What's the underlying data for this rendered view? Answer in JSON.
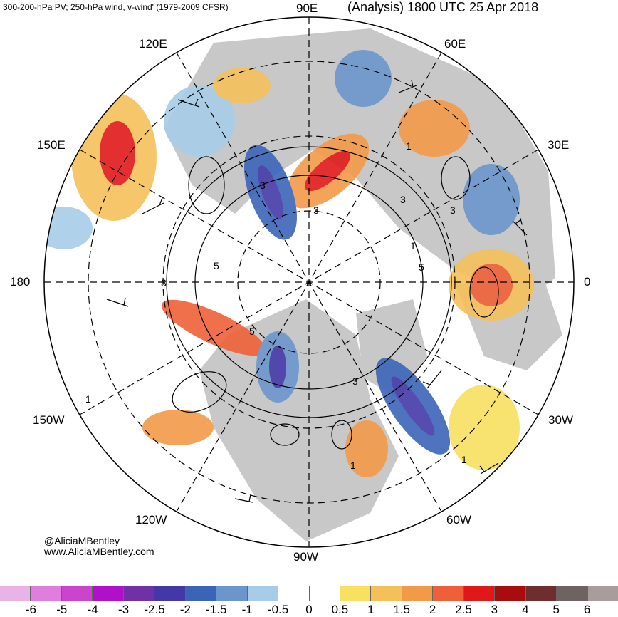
{
  "header": {
    "title_left": "300-200-hPa PV; 250-hPa wind, v-wind' (1979-2009 CFSR)",
    "title_right": "(Analysis) 1800 UTC 25 Apr 2018"
  },
  "map": {
    "projection": "north-polar-stereographic",
    "longitude_labels": {
      "top": "90E",
      "upper_left": "120E",
      "upper_right": "60E",
      "left_upper": "150E",
      "right_upper": "30E",
      "left": "180",
      "right": "0",
      "left_lower": "150W",
      "right_lower": "30W",
      "lower_left": "120W",
      "lower_right": "60W",
      "bottom": "90W"
    },
    "contour_labels": [
      "1",
      "3",
      "5",
      "3",
      "1",
      "3",
      "5",
      "3",
      "1",
      "1",
      "3",
      "1",
      "3",
      "5"
    ],
    "grid": true,
    "colors": {
      "land": "#c8c8c8",
      "ocean": "#ffffff",
      "contour": "#000000",
      "grid": "#000000"
    }
  },
  "credits": {
    "line1": "@AliciaMBentley",
    "line2": "www.AliciaMBentley.com"
  },
  "colorbar": {
    "colors": [
      "#e8b4e8",
      "#e07ee0",
      "#cc44cc",
      "#b011c8",
      "#7030a8",
      "#4438a8",
      "#3a64b8",
      "#6a96cc",
      "#a8cce8",
      "#ffffff",
      "#ffffff",
      "#f8e060",
      "#f4c05a",
      "#f29a48",
      "#f06038",
      "#e01818",
      "#a80c0c",
      "#6e2e2e",
      "#6e6262",
      "#a89c9c"
    ],
    "ticks": [
      "-6",
      "-5",
      "-4",
      "-3",
      "-2.5",
      "-2",
      "-1.5",
      "-1",
      "-0.5",
      "0",
      "0.5",
      "1",
      "1.5",
      "2",
      "2.5",
      "3",
      "4",
      "5",
      "6"
    ]
  }
}
